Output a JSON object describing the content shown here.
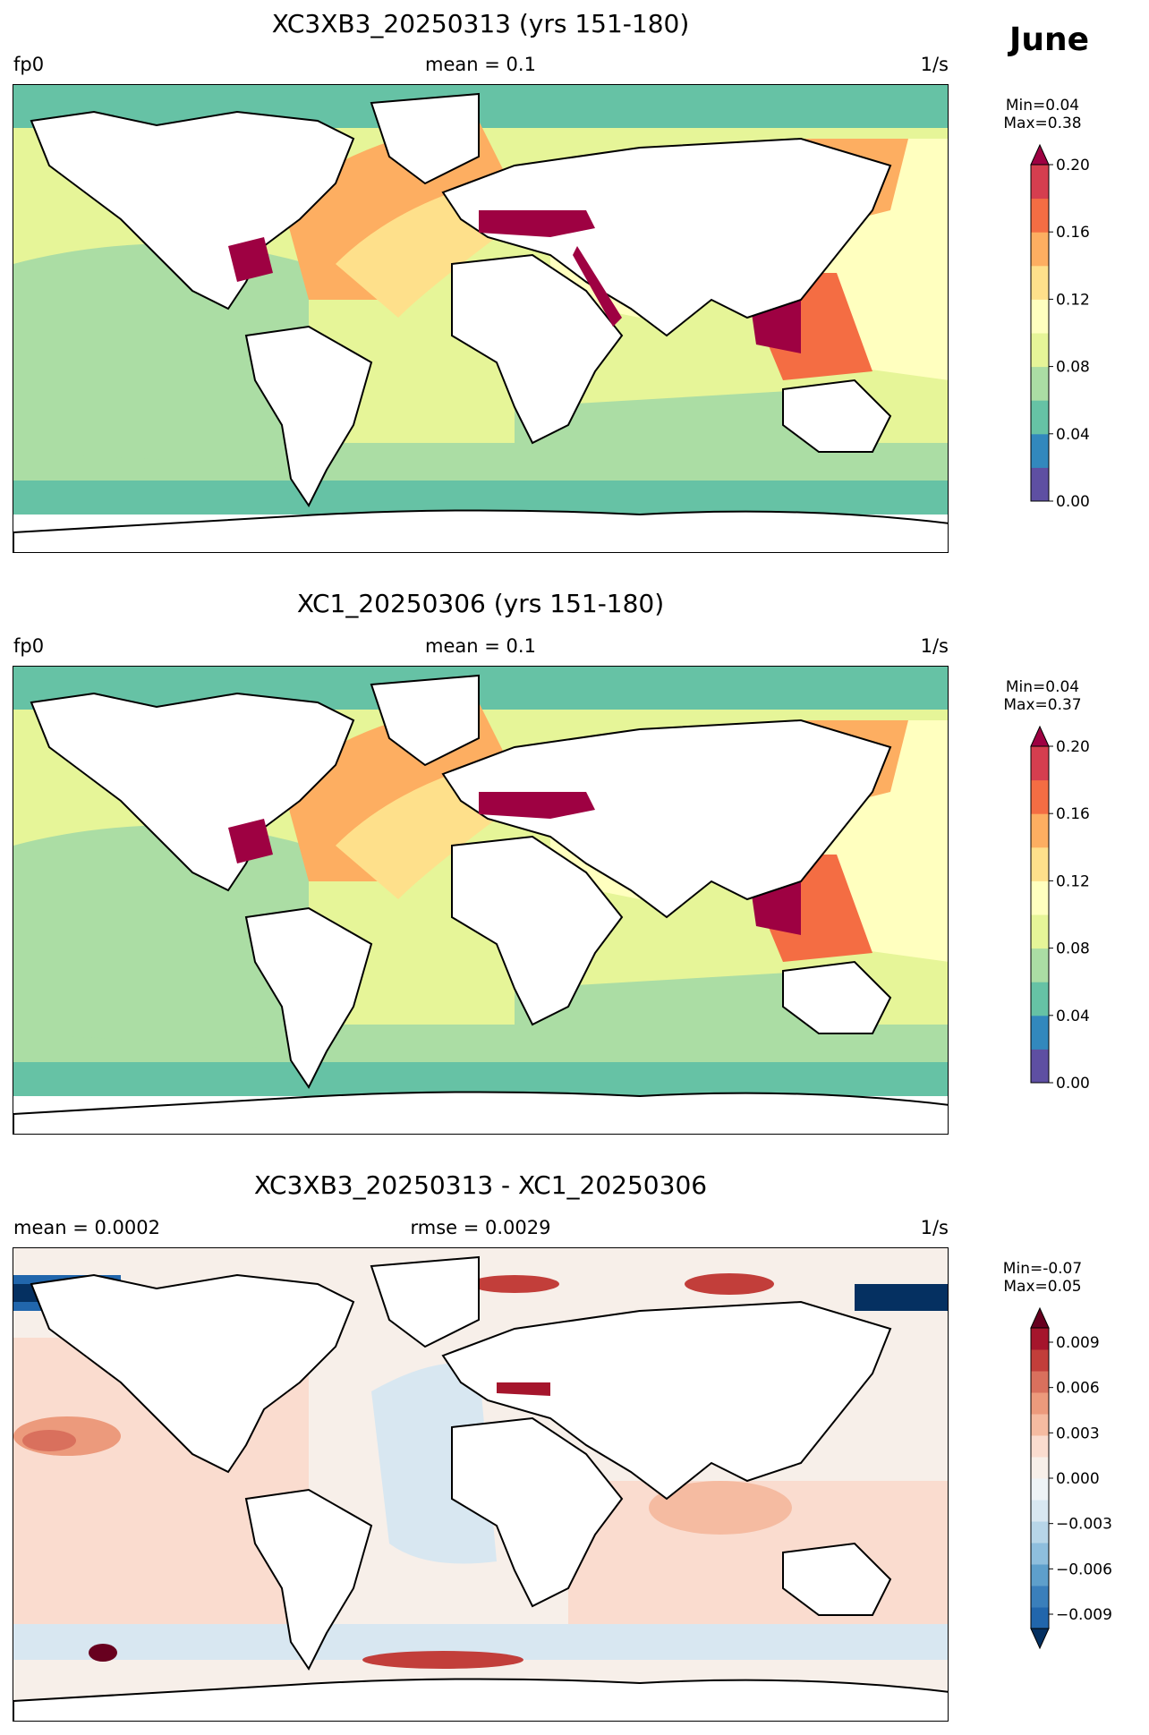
{
  "figure": {
    "month_label": "June"
  },
  "panels": [
    {
      "title": "XC3XB3_20250313 (yrs 151-180)",
      "left_label": "fp0",
      "center_label": "mean = 0.1",
      "units": "1/s",
      "min_label": "Min=0.04",
      "max_label": "Max=0.38",
      "colorbar": {
        "ticks": [
          "0.00",
          "0.04",
          "0.08",
          "0.12",
          "0.16",
          "0.20"
        ],
        "colors": [
          "#5e4fa2",
          "#3288bd",
          "#66c2a5",
          "#abdda4",
          "#e6f598",
          "#ffffbf",
          "#fee08b",
          "#fdae61",
          "#f46d43",
          "#d53e4f"
        ],
        "extend_color": "#9e0142"
      }
    },
    {
      "title": "XC1_20250306 (yrs 151-180)",
      "left_label": "fp0",
      "center_label": "mean = 0.1",
      "units": "1/s",
      "min_label": "Min=0.04",
      "max_label": "Max=0.37",
      "colorbar": {
        "ticks": [
          "0.00",
          "0.04",
          "0.08",
          "0.12",
          "0.16",
          "0.20"
        ],
        "colors": [
          "#5e4fa2",
          "#3288bd",
          "#66c2a5",
          "#abdda4",
          "#e6f598",
          "#ffffbf",
          "#fee08b",
          "#fdae61",
          "#f46d43",
          "#d53e4f"
        ],
        "extend_color": "#9e0142"
      }
    },
    {
      "title": "XC3XB3_20250313 - XC1_20250306",
      "left_label": "mean = 0.0002",
      "center_label": "rmse = 0.0029",
      "units": "1/s",
      "min_label": "Min=-0.07",
      "max_label": "Max=0.05",
      "colorbar": {
        "ticks": [
          "0.009",
          "0.006",
          "0.003",
          "0.000",
          "−0.003",
          "−0.006",
          "−0.009"
        ],
        "colors": [
          "#2166ac",
          "#3a7fbb",
          "#5e9fcb",
          "#8ebedd",
          "#b7d5e8",
          "#d8e7f1",
          "#eef3f6",
          "#f7efe9",
          "#fadccf",
          "#f5bba1",
          "#ec9a7c",
          "#d9705d",
          "#c23e3a",
          "#a5152c"
        ],
        "extend_low": "#053061",
        "extend_high": "#67001f"
      }
    }
  ]
}
